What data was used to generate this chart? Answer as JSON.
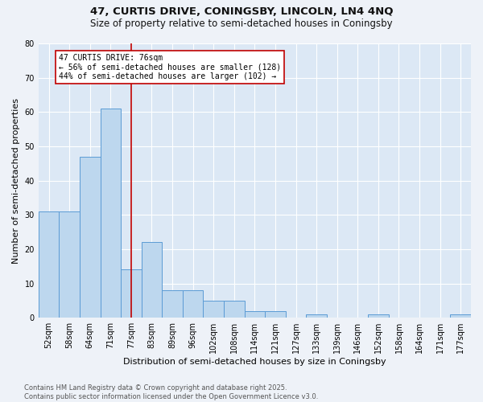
{
  "title1": "47, CURTIS DRIVE, CONINGSBY, LINCOLN, LN4 4NQ",
  "title2": "Size of property relative to semi-detached houses in Coningsby",
  "xlabel": "Distribution of semi-detached houses by size in Coningsby",
  "ylabel": "Number of semi-detached properties",
  "categories": [
    "52sqm",
    "58sqm",
    "64sqm",
    "71sqm",
    "77sqm",
    "83sqm",
    "89sqm",
    "96sqm",
    "102sqm",
    "108sqm",
    "114sqm",
    "121sqm",
    "127sqm",
    "133sqm",
    "139sqm",
    "146sqm",
    "152sqm",
    "158sqm",
    "164sqm",
    "171sqm",
    "177sqm"
  ],
  "values": [
    31,
    31,
    47,
    61,
    14,
    22,
    8,
    8,
    5,
    5,
    2,
    2,
    0,
    1,
    0,
    0,
    1,
    0,
    0,
    0,
    1
  ],
  "bar_color": "#bdd7ee",
  "bar_edge_color": "#5b9bd5",
  "vline_x_index": 4,
  "vline_color": "#c00000",
  "annotation_text": "47 CURTIS DRIVE: 76sqm\n← 56% of semi-detached houses are smaller (128)\n44% of semi-detached houses are larger (102) →",
  "annotation_box_color": "#ffffff",
  "annotation_box_edge_color": "#c00000",
  "ylim": [
    0,
    80
  ],
  "yticks": [
    0,
    10,
    20,
    30,
    40,
    50,
    60,
    70,
    80
  ],
  "footer": "Contains HM Land Registry data © Crown copyright and database right 2025.\nContains public sector information licensed under the Open Government Licence v3.0.",
  "bg_color": "#eef2f8",
  "plot_bg_color": "#dce8f5",
  "grid_color": "#ffffff",
  "title_fontsize": 9.5,
  "subtitle_fontsize": 8.5,
  "tick_fontsize": 7,
  "ylabel_fontsize": 8,
  "xlabel_fontsize": 8,
  "annotation_fontsize": 7,
  "footer_fontsize": 6
}
